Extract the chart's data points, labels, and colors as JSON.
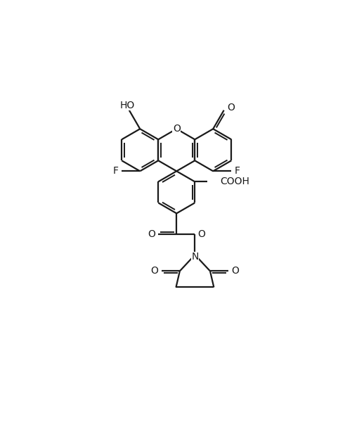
{
  "background_color": "#ffffff",
  "line_color": "#1a1a1a",
  "lw": 1.6,
  "lw_inner": 1.4,
  "figsize": [
    4.91,
    6.0
  ],
  "dpi": 100,
  "xlim": [
    0,
    9.82
  ],
  "ylim": [
    0,
    12.0
  ]
}
